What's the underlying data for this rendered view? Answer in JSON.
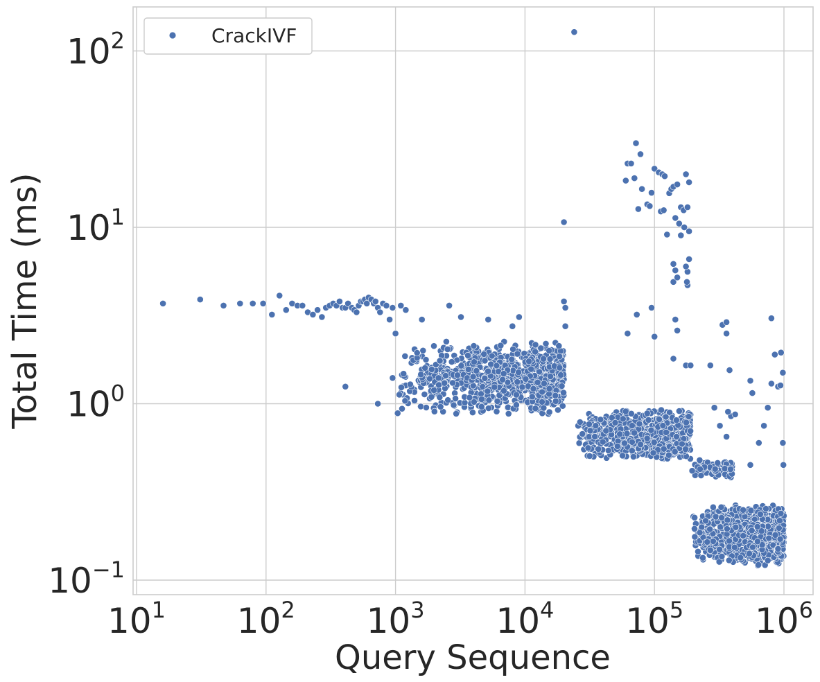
{
  "chart_data": {
    "type": "scatter",
    "xlabel": "Query Sequence",
    "ylabel": "Total Time (ms)",
    "xscale": "log",
    "yscale": "log",
    "xlim": [
      9,
      1800000
    ],
    "ylim": [
      0.085,
      190
    ],
    "grid": true,
    "legend": {
      "position": "top-left",
      "entries": [
        "CrackIVF"
      ]
    },
    "x_ticks": [
      {
        "base": "10",
        "exp": "1",
        "value": 10
      },
      {
        "base": "10",
        "exp": "2",
        "value": 100
      },
      {
        "base": "10",
        "exp": "3",
        "value": 1000
      },
      {
        "base": "10",
        "exp": "4",
        "value": 10000
      },
      {
        "base": "10",
        "exp": "5",
        "value": 100000
      },
      {
        "base": "10",
        "exp": "6",
        "value": 1000000
      }
    ],
    "y_ticks": [
      {
        "base": "10",
        "exp": "−1",
        "value": 0.1
      },
      {
        "base": "10",
        "exp": "0",
        "value": 1
      },
      {
        "base": "10",
        "exp": "1",
        "value": 10
      },
      {
        "base": "10",
        "exp": "2",
        "value": 100
      }
    ],
    "series": [
      {
        "name": "CrackIVF",
        "color": "#4c72b0",
        "points": [
          [
            16,
            3.7
          ],
          [
            31,
            3.9
          ],
          [
            47,
            3.6
          ],
          [
            63,
            3.7
          ],
          [
            79,
            3.7
          ],
          [
            95,
            3.7
          ],
          [
            111,
            3.2
          ],
          [
            127,
            4.1
          ],
          [
            143,
            3.4
          ],
          [
            159,
            3.7
          ],
          [
            175,
            3.6
          ],
          [
            191,
            3.6
          ],
          [
            210,
            3.3
          ],
          [
            230,
            3.2
          ],
          [
            250,
            3.4
          ],
          [
            270,
            3.1
          ],
          [
            290,
            3.5
          ],
          [
            310,
            3.6
          ],
          [
            330,
            3.7
          ],
          [
            350,
            3.6
          ],
          [
            370,
            3.8
          ],
          [
            390,
            3.5
          ],
          [
            410,
            3.5
          ],
          [
            430,
            3.7
          ],
          [
            460,
            3.5
          ],
          [
            480,
            3.4
          ],
          [
            500,
            3.3
          ],
          [
            520,
            3.6
          ],
          [
            540,
            3.8
          ],
          [
            560,
            3.8
          ],
          [
            580,
            3.9
          ],
          [
            600,
            3.7
          ],
          [
            620,
            4.0
          ],
          [
            650,
            3.9
          ],
          [
            680,
            3.7
          ],
          [
            700,
            3.8
          ],
          [
            730,
            3.5
          ],
          [
            760,
            3.3
          ],
          [
            800,
            3.7
          ],
          [
            850,
            3.6
          ],
          [
            900,
            3.0
          ],
          [
            950,
            3.5
          ],
          [
            1000,
            2.5
          ],
          [
            1100,
            3.6
          ],
          [
            1200,
            3.4
          ],
          [
            410,
            1.25
          ],
          [
            730,
            1.0
          ],
          [
            950,
            1.4
          ],
          [
            1600,
            3.0
          ],
          [
            2600,
            3.6
          ],
          [
            3200,
            3.1
          ],
          [
            5200,
            3.0
          ],
          [
            8000,
            2.75
          ],
          [
            9000,
            3.1
          ],
          [
            20000,
            3.8
          ],
          [
            20500,
            3.5
          ],
          [
            20500,
            2.75
          ],
          [
            20000,
            10.7
          ],
          [
            24000,
            128
          ],
          [
            62000,
            23
          ],
          [
            66000,
            23
          ],
          [
            60000,
            18.4
          ],
          [
            72000,
            30
          ],
          [
            78000,
            26
          ],
          [
            70000,
            19
          ],
          [
            75000,
            12.7
          ],
          [
            80000,
            16.5
          ],
          [
            88000,
            13.5
          ],
          [
            92000,
            13.2
          ],
          [
            95000,
            15.7
          ],
          [
            100000,
            21.5
          ],
          [
            108000,
            20.5
          ],
          [
            115000,
            20
          ],
          [
            120000,
            19.5
          ],
          [
            112000,
            12.3
          ],
          [
            118000,
            12.5
          ],
          [
            125000,
            9.1
          ],
          [
            130000,
            15.6
          ],
          [
            135000,
            16.5
          ],
          [
            140000,
            17
          ],
          [
            150000,
            17.5
          ],
          [
            145000,
            11.3
          ],
          [
            155000,
            10.5
          ],
          [
            160000,
            13
          ],
          [
            168000,
            12.5
          ],
          [
            175000,
            20
          ],
          [
            180000,
            13
          ],
          [
            185000,
            18
          ],
          [
            160000,
            9
          ],
          [
            170000,
            10
          ],
          [
            185000,
            9.5
          ],
          [
            140000,
            6.2
          ],
          [
            145000,
            5.7
          ],
          [
            140000,
            4.9
          ],
          [
            150000,
            5.2
          ],
          [
            180000,
            5.6
          ],
          [
            185000,
            6.6
          ],
          [
            180000,
            4.7
          ],
          [
            178000,
            4.9
          ],
          [
            175000,
            6
          ],
          [
            95000,
            3.5
          ],
          [
            100000,
            2.4
          ],
          [
            62000,
            2.5
          ],
          [
            73000,
            3.2
          ],
          [
            150000,
            2.6
          ],
          [
            145000,
            3.0
          ],
          [
            140000,
            1.8
          ],
          [
            175000,
            1.65
          ],
          [
            190000,
            1.65
          ],
          [
            270000,
            1.65
          ],
          [
            335000,
            2.8
          ],
          [
            360000,
            2.9
          ],
          [
            360000,
            2.5
          ],
          [
            380000,
            1.55
          ],
          [
            550000,
            1.35
          ],
          [
            570000,
            1.15
          ],
          [
            800000,
            3.05
          ],
          [
            850000,
            1.9
          ],
          [
            950000,
            1.95
          ],
          [
            980000,
            1.5
          ],
          [
            750000,
            0.95
          ],
          [
            700000,
            0.75
          ],
          [
            640000,
            0.6
          ],
          [
            800000,
            1.3
          ],
          [
            900000,
            1.25
          ],
          [
            940000,
            1.27
          ],
          [
            980000,
            0.6
          ],
          [
            990000,
            0.45
          ],
          [
            290000,
            0.95
          ],
          [
            320000,
            0.75
          ],
          [
            360000,
            0.65
          ],
          [
            390000,
            0.85
          ],
          [
            420000,
            0.87
          ],
          [
            370000,
            0.9
          ],
          [
            550000,
            0.45
          ]
        ],
        "dense_clusters": [
          {
            "x_range": [
              1000,
              20000
            ],
            "y_range": [
              0.85,
              2.3
            ],
            "count": 900
          },
          {
            "x_range": [
              25000,
              190000
            ],
            "y_range": [
              0.47,
              0.95
            ],
            "count": 700
          },
          {
            "x_range": [
              195000,
              1000000
            ],
            "y_range": [
              0.12,
              0.27
            ],
            "count": 1100
          },
          {
            "x_range": [
              195000,
              400000
            ],
            "y_range": [
              0.38,
              0.48
            ],
            "count": 80
          }
        ]
      }
    ]
  }
}
